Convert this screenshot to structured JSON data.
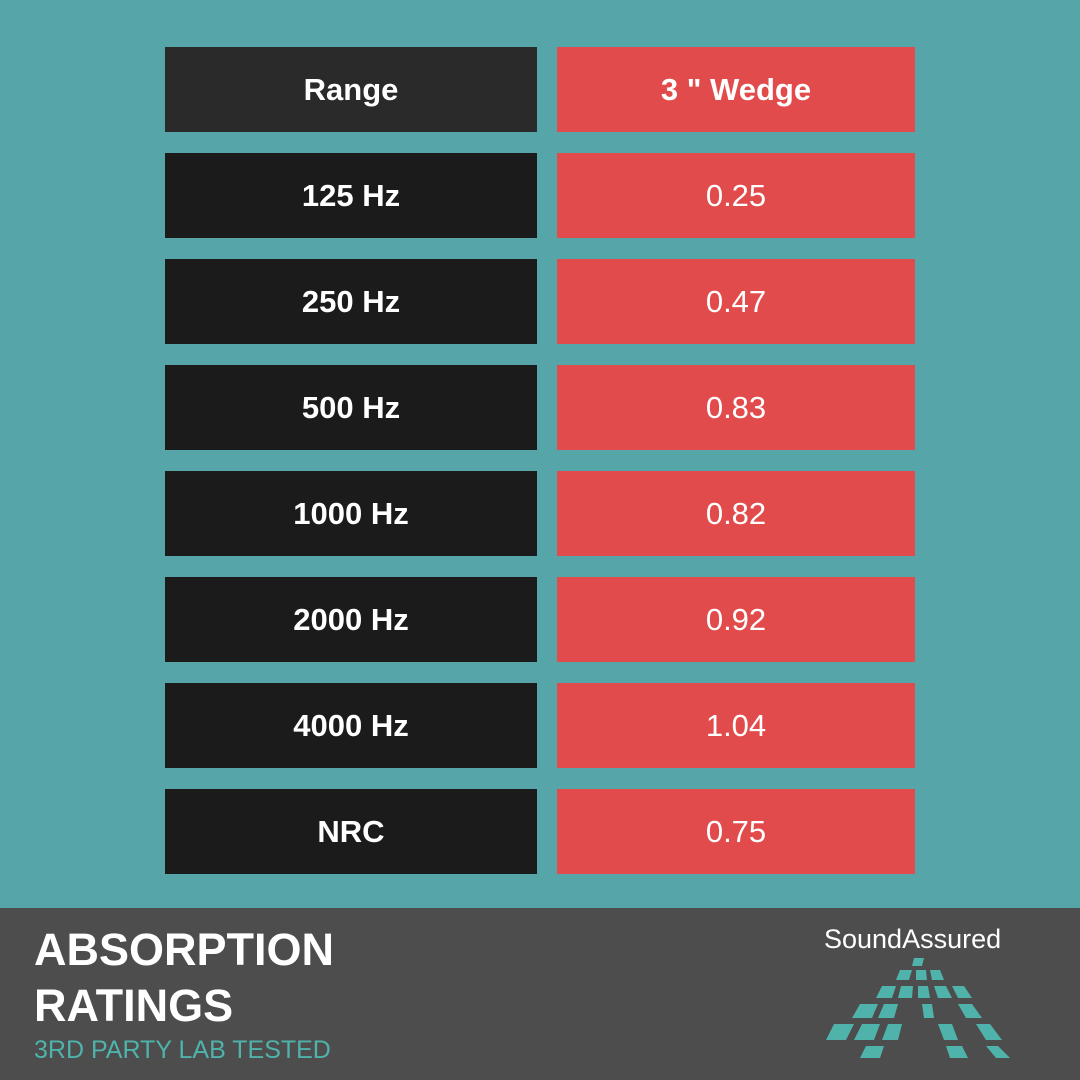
{
  "table": {
    "header": [
      "Range",
      "3 \" Wedge"
    ],
    "rows": [
      [
        "125 Hz",
        "0.25"
      ],
      [
        "250 Hz",
        "0.47"
      ],
      [
        "500 Hz",
        "0.83"
      ],
      [
        "1000 Hz",
        "0.82"
      ],
      [
        "2000 Hz",
        "0.92"
      ],
      [
        "4000 Hz",
        "1.04"
      ],
      [
        "NRC",
        "0.75"
      ]
    ]
  },
  "footer": {
    "title": "ABSORPTION RATINGS",
    "subtitle": "3RD PARTY LAB TESTED",
    "logo": "SoundAssured"
  }
}
